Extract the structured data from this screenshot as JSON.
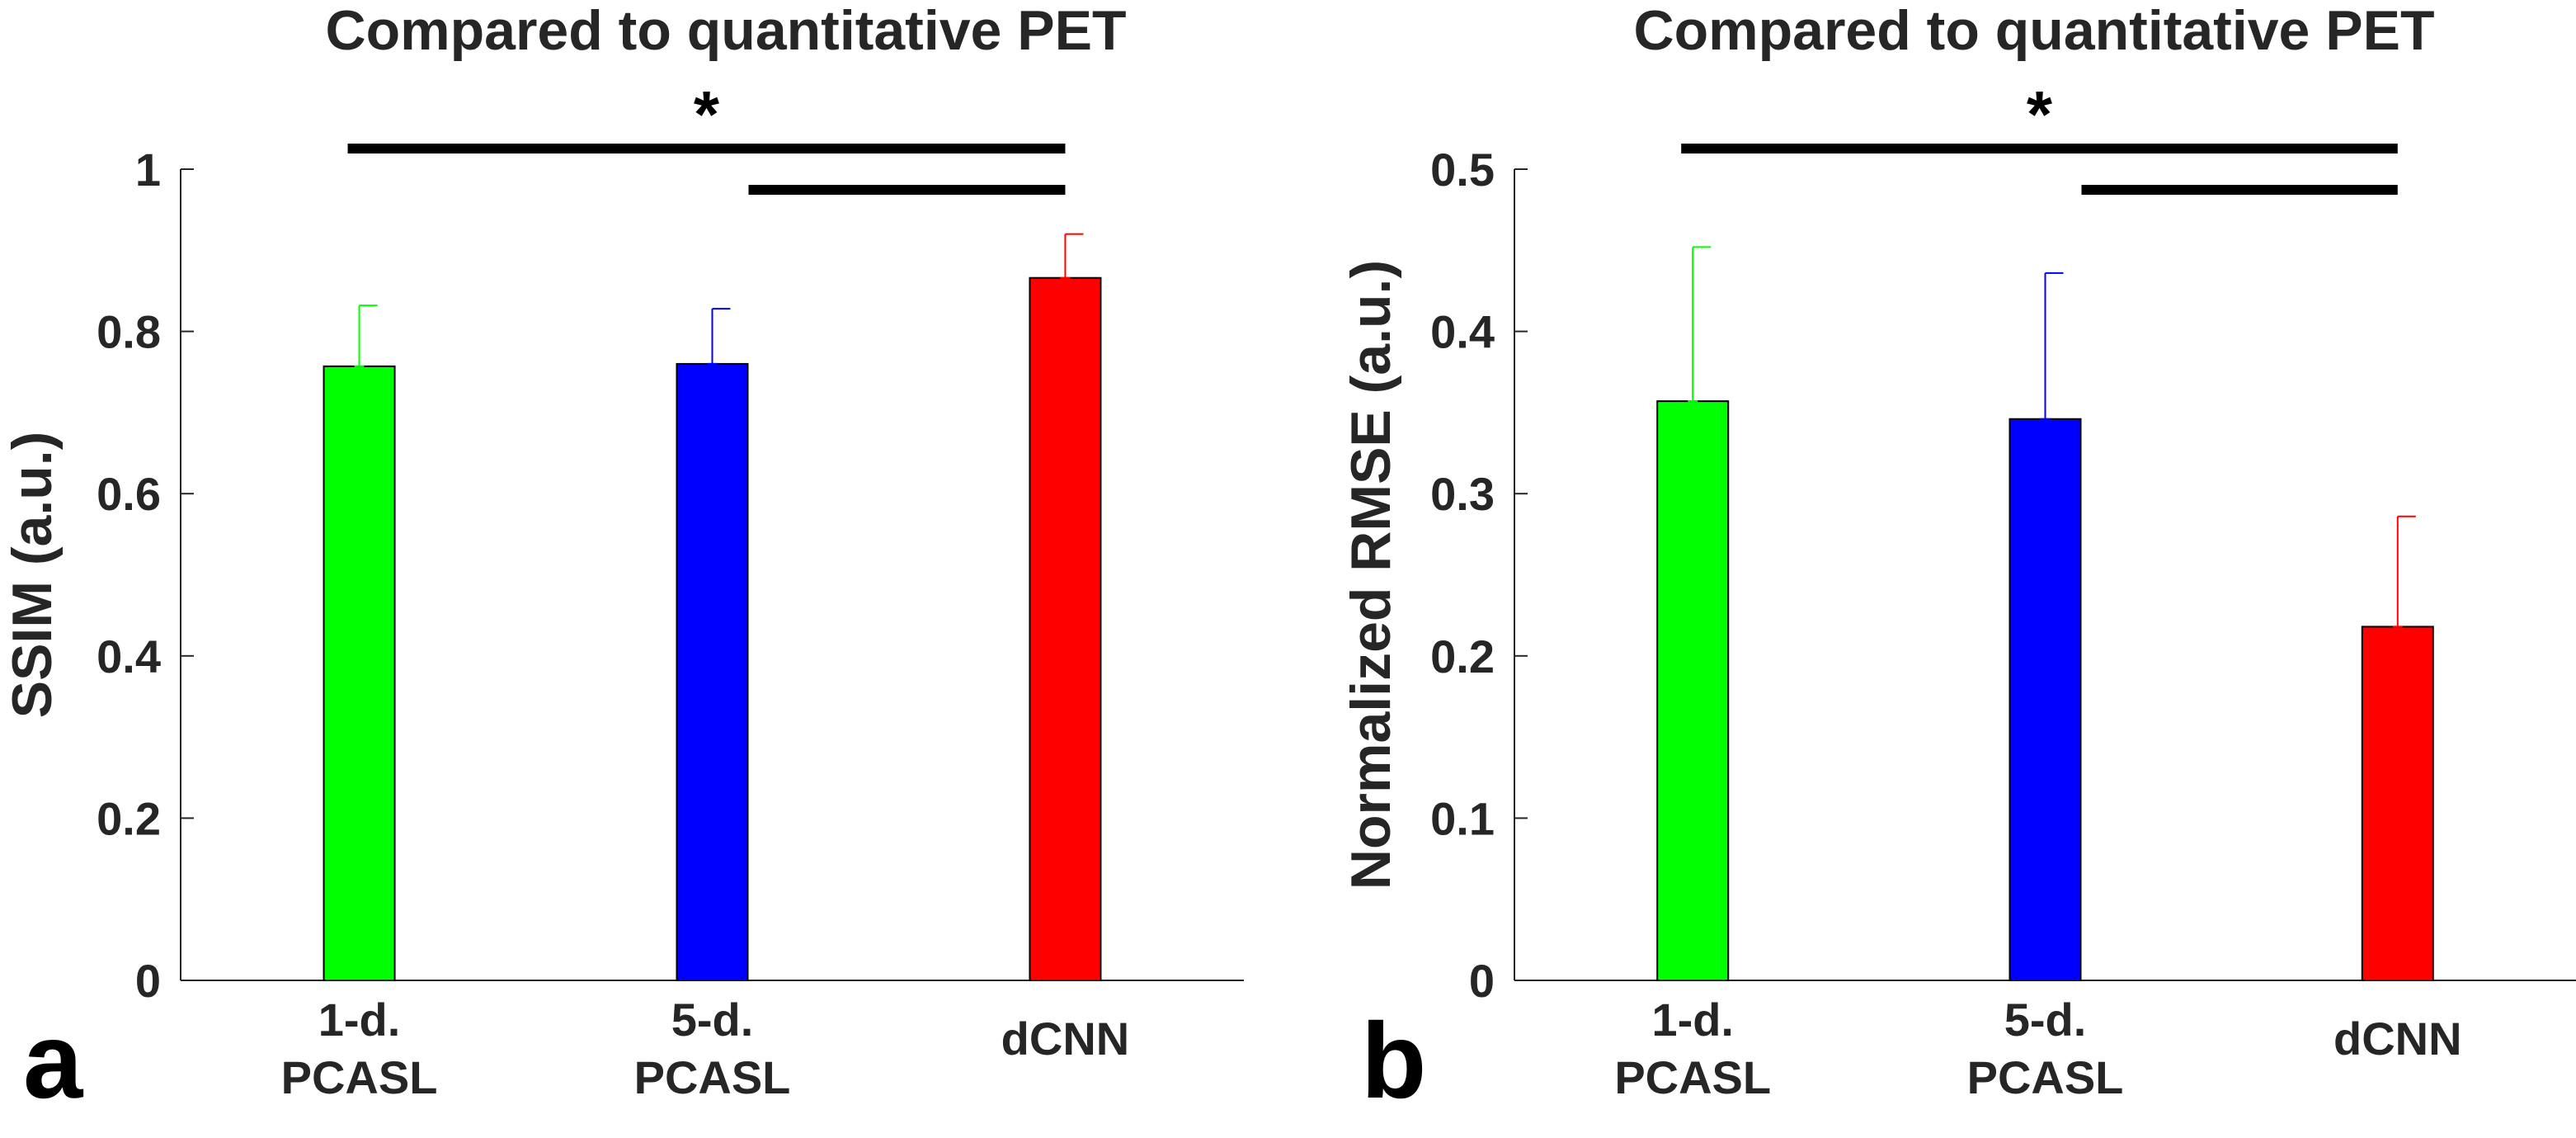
{
  "chart_data": [
    {
      "type": "bar",
      "panel_label": "a",
      "title": "Compared to quantitative PET",
      "xlabel": "",
      "ylabel": "SSIM (a.u.)",
      "ylim": [
        0,
        1
      ],
      "yticks": [
        0,
        0.2,
        0.4,
        0.6,
        0.8,
        1
      ],
      "ytick_labels": [
        "0",
        "0.2",
        "0.4",
        "0.6",
        "0.8",
        "1"
      ],
      "categories": [
        [
          "1-d.",
          "PCASL"
        ],
        [
          "5-d.",
          "PCASL"
        ],
        [
          "dCNN"
        ]
      ],
      "values": [
        0.757,
        0.76,
        0.866
      ],
      "errors": [
        0.075,
        0.068,
        0.054
      ],
      "colors": [
        "#00ff00",
        "#0000ff",
        "#ff0000"
      ],
      "grid": false,
      "significance": [
        {
          "from": 0,
          "to": 2
        },
        {
          "from": 1,
          "to": 2
        }
      ],
      "significance_marker": "*"
    },
    {
      "type": "bar",
      "panel_label": "b",
      "title": "Compared to quantitative PET",
      "xlabel": "",
      "ylabel": "Normalized RMSE (a.u.)",
      "ylim": [
        0,
        0.5
      ],
      "yticks": [
        0,
        0.1,
        0.2,
        0.3,
        0.4,
        0.5
      ],
      "ytick_labels": [
        "0",
        "0.1",
        "0.2",
        "0.3",
        "0.4",
        "0.5"
      ],
      "categories": [
        [
          "1-d.",
          "PCASL"
        ],
        [
          "5-d.",
          "PCASL"
        ],
        [
          "dCNN"
        ]
      ],
      "values": [
        0.357,
        0.346,
        0.218
      ],
      "errors": [
        0.095,
        0.09,
        0.068
      ],
      "colors": [
        "#00ff00",
        "#0000ff",
        "#ff0000"
      ],
      "grid": false,
      "significance": [
        {
          "from": 0,
          "to": 2
        },
        {
          "from": 1,
          "to": 2
        }
      ],
      "significance_marker": "*"
    }
  ]
}
